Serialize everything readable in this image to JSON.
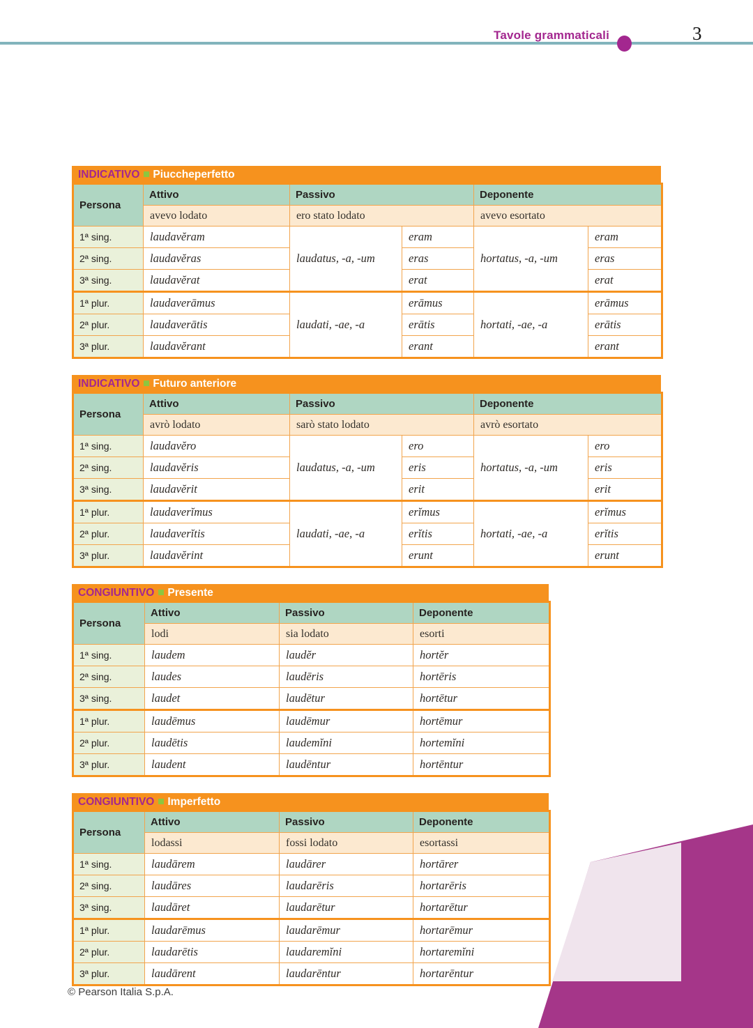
{
  "header": {
    "title": "Tavole grammaticali",
    "page_number": "3"
  },
  "footer": {
    "copyright": "© Pearson Italia S.p.A."
  },
  "icons": {
    "title_bullet": "bullet-square-icon",
    "header_dot": "section-dot-icon"
  },
  "colors": {
    "title_bar_orange": "#F6921E",
    "mood_purple": "#A3278F",
    "bullet_green": "#8DC63F",
    "header_teal": "#AFD6C2",
    "translation_cream": "#FCE9D0",
    "person_green": "#EAF1DA",
    "border_orange": "#F2A44C",
    "rule_teal": "#82B4BC",
    "decoration_magenta": "#A53689",
    "decoration_pink": "#F0E4ED"
  },
  "tables": [
    {
      "mood": "INDICATIVO",
      "tense": "Piuccheperfetto",
      "headers": {
        "persona": "Persona",
        "attivo": "Attivo",
        "passivo": "Passivo",
        "deponente": "Deponente"
      },
      "translations": {
        "attivo": "avevo lodato",
        "passivo": "ero stato lodato",
        "deponente": "avevo esortato"
      },
      "persons": [
        "1ª sing.",
        "2ª sing.",
        "3ª sing.",
        "1ª plur.",
        "2ª plur.",
        "3ª plur."
      ],
      "attivo": [
        "laudavĕram",
        "laudavĕras",
        "laudavĕrat",
        "laudaverāmus",
        "laudaverātis",
        "laudavĕrant"
      ],
      "passivo": {
        "participles": [
          "laudatus, -a, -um",
          "laudati, -ae, -a"
        ],
        "aux": [
          "eram",
          "eras",
          "erat",
          "erāmus",
          "erātis",
          "erant"
        ]
      },
      "deponente": {
        "participles": [
          "hortatus, -a, -um",
          "hortati, -ae, -a"
        ],
        "aux": [
          "eram",
          "eras",
          "erat",
          "erāmus",
          "erātis",
          "erant"
        ]
      }
    },
    {
      "mood": "INDICATIVO",
      "tense": "Futuro anteriore",
      "headers": {
        "persona": "Persona",
        "attivo": "Attivo",
        "passivo": "Passivo",
        "deponente": "Deponente"
      },
      "translations": {
        "attivo": "avrò lodato",
        "passivo": "sarò stato lodato",
        "deponente": "avrò esortato"
      },
      "persons": [
        "1ª sing.",
        "2ª sing.",
        "3ª sing.",
        "1ª plur.",
        "2ª plur.",
        "3ª plur."
      ],
      "attivo": [
        "laudavĕro",
        "laudavĕris",
        "laudavĕrit",
        "laudaverĭmus",
        "laudaverĭtis",
        "laudavĕrint"
      ],
      "passivo": {
        "participles": [
          "laudatus, -a, -um",
          "laudati, -ae, -a"
        ],
        "aux": [
          "ero",
          "eris",
          "erit",
          "erĭmus",
          "erĭtis",
          "erunt"
        ]
      },
      "deponente": {
        "participles": [
          "hortatus, -a, -um",
          "hortati, -ae, -a"
        ],
        "aux": [
          "ero",
          "eris",
          "erit",
          "erĭmus",
          "erĭtis",
          "erunt"
        ]
      }
    },
    {
      "mood": "CONGIUNTIVO",
      "tense": "Presente",
      "headers": {
        "persona": "Persona",
        "attivo": "Attivo",
        "passivo": "Passivo",
        "deponente": "Deponente"
      },
      "translations": {
        "attivo": "lodi",
        "passivo": "sia lodato",
        "deponente": "esorti"
      },
      "persons": [
        "1ª sing.",
        "2ª sing.",
        "3ª sing.",
        "1ª plur.",
        "2ª plur.",
        "3ª plur."
      ],
      "attivo": [
        "laudem",
        "laudes",
        "laudet",
        "laudēmus",
        "laudētis",
        "laudent"
      ],
      "passivo": [
        "laudĕr",
        "laudēris",
        "laudētur",
        "laudēmur",
        "laudemĭni",
        "laudēntur"
      ],
      "deponente": [
        "hortĕr",
        "hortēris",
        "hortētur",
        "hortēmur",
        "hortemĭni",
        "hortēntur"
      ]
    },
    {
      "mood": "CONGIUNTIVO",
      "tense": "Imperfetto",
      "headers": {
        "persona": "Persona",
        "attivo": "Attivo",
        "passivo": "Passivo",
        "deponente": "Deponente"
      },
      "translations": {
        "attivo": "lodassi",
        "passivo": "fossi lodato",
        "deponente": "esortassi"
      },
      "persons": [
        "1ª sing.",
        "2ª sing.",
        "3ª sing.",
        "1ª plur.",
        "2ª plur.",
        "3ª plur."
      ],
      "attivo": [
        "laudārem",
        "laudāres",
        "laudāret",
        "laudarēmus",
        "laudarētis",
        "laudārent"
      ],
      "passivo": [
        "laudārer",
        "laudarēris",
        "laudarētur",
        "laudarēmur",
        "laudaremĭni",
        "laudarēntur"
      ],
      "deponente": [
        "hortārer",
        "hortarēris",
        "hortarētur",
        "hortarēmur",
        "hortaremĭni",
        "hortarēntur"
      ]
    }
  ]
}
